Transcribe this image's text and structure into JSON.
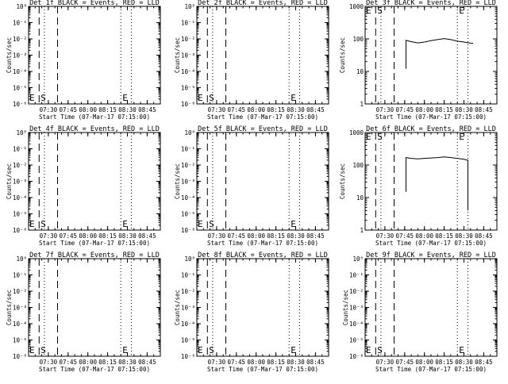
{
  "chart_data": [
    {
      "type": "line",
      "title": "Det 1f BLACK = Events, RED = LLD",
      "xlabel": "Start Time (07-Mar-17 07:15:00)",
      "ylabel": "Counts/sec",
      "xlim": [
        "07:15",
        "08:55"
      ],
      "x_ticks": [
        "07:30",
        "07:45",
        "08:00",
        "08:15",
        "08:30",
        "08:45"
      ],
      "ylim": [
        1e-06,
        0.0001
      ],
      "scale": "log",
      "y_ticks": [
        "10⁻⁶",
        "10⁻⁵",
        "10⁻⁴",
        "10⁻³",
        "10⁻²",
        "10⁻¹",
        "10⁰"
      ],
      "markers": [
        "E",
        "S",
        "E"
      ],
      "series": []
    },
    {
      "type": "line",
      "title": "Det 2f BLACK = Events, RED = LLD",
      "xlabel": "Start Time (07-Mar-17 07:15:00)",
      "ylabel": "Counts/sec",
      "xlim": [
        "07:15",
        "08:55"
      ],
      "x_ticks": [
        "07:30",
        "07:45",
        "08:00",
        "08:15",
        "08:30",
        "08:45"
      ],
      "ylim": [
        1e-06,
        0.0001
      ],
      "scale": "log",
      "y_ticks": [
        "10⁻⁶",
        "10⁻⁵",
        "10⁻⁴",
        "10⁻³",
        "10⁻²",
        "10⁻¹",
        "10⁰"
      ],
      "markers": [
        "E",
        "S",
        "E"
      ],
      "series": []
    },
    {
      "type": "line",
      "title": "Det 3f BLACK = Events, RED = LLD",
      "xlabel": "Start Time (07-Mar-17 07:15:00)",
      "ylabel": "Counts/sec",
      "xlim": [
        "07:15",
        "08:55"
      ],
      "x_ticks": [
        "07:30",
        "07:45",
        "08:00",
        "08:15",
        "08:30",
        "08:45"
      ],
      "ylim": [
        1,
        1000
      ],
      "scale": "log",
      "y_ticks": [
        "1",
        "10",
        "100",
        "1000"
      ],
      "markers": [
        "E",
        "S",
        "E"
      ],
      "series": [
        {
          "x": [
            "07:46",
            "07:46",
            "07:50",
            "07:55",
            "08:00",
            "08:05",
            "08:10",
            "08:15",
            "08:20",
            "08:25",
            "08:30",
            "08:35",
            "08:37"
          ],
          "y": [
            12,
            90,
            82,
            75,
            80,
            88,
            95,
            102,
            95,
            85,
            80,
            74,
            73
          ]
        }
      ]
    },
    {
      "type": "line",
      "title": "Det 4f BLACK = Events, RED = LLD",
      "xlabel": "Start Time (07-Mar-17 07:15:00)",
      "ylabel": "Counts/sec",
      "xlim": [
        "07:15",
        "08:55"
      ],
      "x_ticks": [
        "07:30",
        "07:45",
        "08:00",
        "08:15",
        "08:30",
        "08:45"
      ],
      "ylim": [
        1e-06,
        0.0001
      ],
      "scale": "log",
      "y_ticks": [
        "10⁻⁶",
        "10⁻⁵",
        "10⁻⁴",
        "10⁻³",
        "10⁻²",
        "10⁻¹",
        "10⁰"
      ],
      "markers": [
        "E",
        "S",
        "E"
      ],
      "series": []
    },
    {
      "type": "line",
      "title": "Det 5f BLACK = Events, RED = LLD",
      "xlabel": "Start Time (07-Mar-17 07:15:00)",
      "ylabel": "Counts/sec",
      "xlim": [
        "07:15",
        "08:55"
      ],
      "x_ticks": [
        "07:30",
        "07:45",
        "08:00",
        "08:15",
        "08:30",
        "08:45"
      ],
      "ylim": [
        1e-06,
        0.0001
      ],
      "scale": "log",
      "y_ticks": [
        "10⁻⁶",
        "10⁻⁵",
        "10⁻⁴",
        "10⁻³",
        "10⁻²",
        "10⁻¹",
        "10⁰"
      ],
      "markers": [
        "E",
        "S",
        "E"
      ],
      "series": []
    },
    {
      "type": "line",
      "title": "Det 6f BLACK = Events, RED = LLD",
      "xlabel": "Start Time (07-Mar-17 07:15:00)",
      "ylabel": "Counts/sec",
      "xlim": [
        "07:15",
        "08:55"
      ],
      "x_ticks": [
        "07:30",
        "07:45",
        "08:00",
        "08:15",
        "08:30",
        "08:45"
      ],
      "ylim": [
        1,
        1000
      ],
      "scale": "log",
      "y_ticks": [
        "1",
        "10",
        "100",
        "1000"
      ],
      "markers": [
        "E",
        "S",
        "E"
      ],
      "series": [
        {
          "x": [
            "07:46",
            "07:46",
            "07:50",
            "07:55",
            "08:00",
            "08:05",
            "08:10",
            "08:15",
            "08:20",
            "08:25",
            "08:30",
            "08:33",
            "08:33"
          ],
          "y": [
            15,
            170,
            160,
            155,
            160,
            165,
            170,
            178,
            170,
            160,
            150,
            140,
            4
          ]
        }
      ]
    },
    {
      "type": "line",
      "title": "Det 7f BLACK = Events, RED = LLD",
      "xlabel": "Start Time (07-Mar-17 07:15:00)",
      "ylabel": "Counts/sec",
      "xlim": [
        "07:15",
        "08:55"
      ],
      "x_ticks": [
        "07:30",
        "07:45",
        "08:00",
        "08:15",
        "08:30",
        "08:45"
      ],
      "ylim": [
        1e-06,
        0.0001
      ],
      "scale": "log",
      "y_ticks": [
        "10⁻⁶",
        "10⁻⁵",
        "10⁻⁴",
        "10⁻³",
        "10⁻²",
        "10⁻¹",
        "10⁰"
      ],
      "markers": [
        "E",
        "S",
        "E"
      ],
      "series": []
    },
    {
      "type": "line",
      "title": "Det 8f BLACK = Events, RED = LLD",
      "xlabel": "Start Time (07-Mar-17 07:15:00)",
      "ylabel": "Counts/sec",
      "xlim": [
        "07:15",
        "08:55"
      ],
      "x_ticks": [
        "07:30",
        "07:45",
        "08:00",
        "08:15",
        "08:30",
        "08:45"
      ],
      "ylim": [
        1e-06,
        0.0001
      ],
      "scale": "log",
      "y_ticks": [
        "10⁻⁶",
        "10⁻⁵",
        "10⁻⁴",
        "10⁻³",
        "10⁻²",
        "10⁻¹",
        "10⁰"
      ],
      "markers": [
        "E",
        "S",
        "E"
      ],
      "series": []
    },
    {
      "type": "line",
      "title": "Det 9f BLACK = Events, RED = LLD",
      "xlabel": "Start Time (07-Mar-17 07:15:00)",
      "ylabel": "Counts/sec",
      "xlim": [
        "07:15",
        "08:55"
      ],
      "x_ticks": [
        "07:30",
        "07:45",
        "08:00",
        "08:15",
        "08:30",
        "08:45"
      ],
      "ylim": [
        1e-06,
        0.0001
      ],
      "scale": "log",
      "y_ticks": [
        "10⁻⁶",
        "10⁻⁵",
        "10⁻⁴",
        "10⁻³",
        "10⁻²",
        "10⁻¹",
        "10⁰"
      ],
      "markers": [
        "E",
        "S",
        "E"
      ],
      "series": []
    }
  ]
}
